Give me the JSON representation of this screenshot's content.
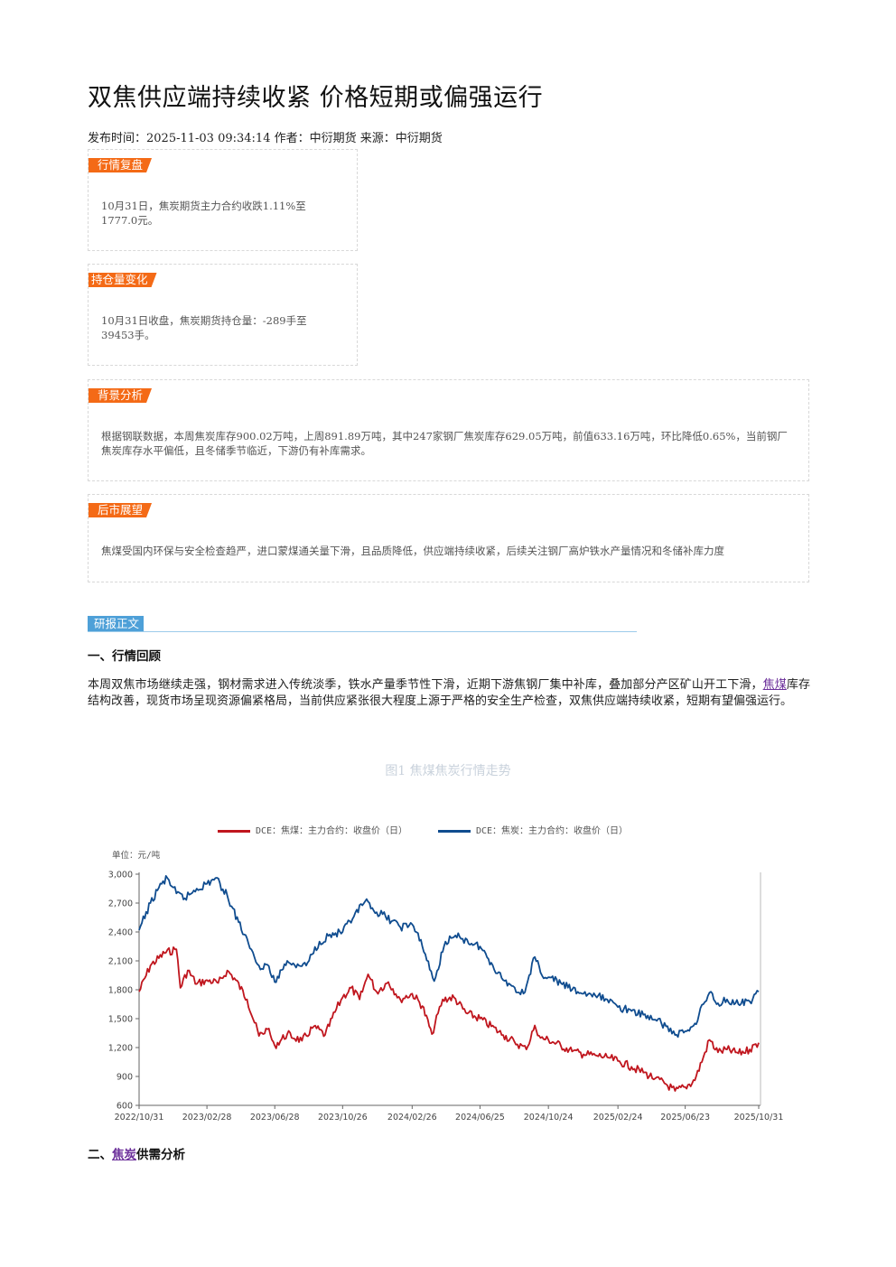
{
  "article": {
    "title": "双焦供应端持续收紧 价格短期或偏强运行",
    "meta": "发布时间：2025-11-03 09:34:14 作者：中衍期货 来源：中衍期货"
  },
  "boxes": {
    "review": {
      "tag": "行情复盘",
      "text": "10月31日，焦炭期货主力合约收跌1.11%至1777.0元。"
    },
    "position": {
      "tag": "持仓量变化",
      "text": "10月31日收盘，焦炭期货持仓量：-289手至39453手。"
    },
    "background": {
      "tag": "背景分析",
      "text": "根据钢联数据，本周焦炭库存900.02万吨，上周891.89万吨，其中247家钢厂焦炭库存629.05万吨，前值633.16万吨，环比降低0.65%，当前钢厂焦炭库存水平偏低，且冬储季节临近，下游仍有补库需求。"
    },
    "outlook": {
      "tag": "后市展望",
      "text": "焦煤受国内环保与安全检查趋严，进口蒙煤通关量下滑，且品质降低，供应端持续收紧，后续关注钢厂高炉铁水产量情况和冬储补库力度"
    }
  },
  "report": {
    "tag": "研报正文",
    "section1": {
      "title": "一、行情回顾"
    },
    "para1": {
      "before": "本周双焦市场继续走强，钢材需求进入传统淡季，铁水产量季节性下滑，近期下游焦钢厂集中补库，叠加部分产区矿山开工下滑，",
      "link": "焦煤",
      "after": "库存结构改善，现货市场呈现资源偏紧格局，当前供应紧张很大程度上源于严格的安全生产检查，双焦供应端持续收紧，短期有望偏强运行。"
    },
    "section2": {
      "prefix": "二、",
      "link": "焦炭",
      "suffix": "供需分析"
    }
  },
  "chart_data": {
    "type": "line",
    "title": "图1 焦煤焦炭行情走势",
    "unit_label": "单位：元/吨",
    "x_ticks": [
      "2022/10/31",
      "2023/02/28",
      "2023/06/28",
      "2023/10/26",
      "2024/02/26",
      "2024/06/25",
      "2024/10/24",
      "2025/02/24",
      "2025/06/23",
      "2025/10/31"
    ],
    "y_ticks": [
      "3,000",
      "2,700",
      "2,400",
      "2,100",
      "1,800",
      "1,500",
      "1,200",
      "900",
      "600"
    ],
    "ylim": [
      600,
      3000
    ],
    "series": [
      {
        "name": "DCE：焦煤：主力合约：收盘价（日）",
        "color": "#c0161e",
        "points": [
          [
            "2022/10/31",
            1780
          ],
          [
            "2022/11/20",
            2050
          ],
          [
            "2022/12/15",
            2180
          ],
          [
            "2023/01/05",
            2220
          ],
          [
            "2023/01/12",
            1820
          ],
          [
            "2023/01/25",
            2000
          ],
          [
            "2023/02/10",
            1860
          ],
          [
            "2023/02/28",
            1900
          ],
          [
            "2023/03/20",
            1870
          ],
          [
            "2023/04/05",
            2000
          ],
          [
            "2023/04/20",
            1900
          ],
          [
            "2023/05/10",
            1700
          ],
          [
            "2023/05/31",
            1320
          ],
          [
            "2023/06/15",
            1390
          ],
          [
            "2023/06/28",
            1220
          ],
          [
            "2023/07/20",
            1340
          ],
          [
            "2023/08/15",
            1270
          ],
          [
            "2023/09/05",
            1420
          ],
          [
            "2023/09/25",
            1330
          ],
          [
            "2023/10/15",
            1600
          ],
          [
            "2023/10/26",
            1720
          ],
          [
            "2023/11/10",
            1820
          ],
          [
            "2023/11/25",
            1700
          ],
          [
            "2023/12/10",
            1960
          ],
          [
            "2023/12/25",
            1780
          ],
          [
            "2024/01/15",
            1880
          ],
          [
            "2024/02/05",
            1700
          ],
          [
            "2024/02/26",
            1760
          ],
          [
            "2024/03/15",
            1630
          ],
          [
            "2024/04/01",
            1340
          ],
          [
            "2024/04/20",
            1700
          ],
          [
            "2024/05/10",
            1720
          ],
          [
            "2024/05/31",
            1560
          ],
          [
            "2024/06/25",
            1500
          ],
          [
            "2024/07/15",
            1420
          ],
          [
            "2024/08/05",
            1330
          ],
          [
            "2024/08/25",
            1260
          ],
          [
            "2024/09/15",
            1180
          ],
          [
            "2024/09/30",
            1430
          ],
          [
            "2024/10/10",
            1300
          ],
          [
            "2024/10/24",
            1280
          ],
          [
            "2024/11/15",
            1220
          ],
          [
            "2024/12/05",
            1160
          ],
          [
            "2024/12/25",
            1130
          ],
          [
            "2025/01/15",
            1120
          ],
          [
            "2025/02/05",
            1100
          ],
          [
            "2025/02/24",
            1060
          ],
          [
            "2025/03/20",
            1000
          ],
          [
            "2025/04/10",
            940
          ],
          [
            "2025/05/01",
            880
          ],
          [
            "2025/05/20",
            820
          ],
          [
            "2025/06/05",
            750
          ],
          [
            "2025/06/23",
            790
          ],
          [
            "2025/07/10",
            860
          ],
          [
            "2025/07/25",
            1100
          ],
          [
            "2025/08/05",
            1280
          ],
          [
            "2025/08/20",
            1150
          ],
          [
            "2025/09/05",
            1180
          ],
          [
            "2025/09/25",
            1140
          ],
          [
            "2025/10/15",
            1180
          ],
          [
            "2025/10/31",
            1250
          ]
        ]
      },
      {
        "name": "DCE：焦炭：主力合约：收盘价（日）",
        "color": "#0f4c8f",
        "points": [
          [
            "2022/10/31",
            2420
          ],
          [
            "2022/11/20",
            2700
          ],
          [
            "2022/12/05",
            2860
          ],
          [
            "2022/12/20",
            2960
          ],
          [
            "2023/01/05",
            2800
          ],
          [
            "2023/01/20",
            2750
          ],
          [
            "2023/02/10",
            2850
          ],
          [
            "2023/02/28",
            2900
          ],
          [
            "2023/03/15",
            2960
          ],
          [
            "2023/04/05",
            2780
          ],
          [
            "2023/04/25",
            2500
          ],
          [
            "2023/05/15",
            2230
          ],
          [
            "2023/05/31",
            2050
          ],
          [
            "2023/06/15",
            2060
          ],
          [
            "2023/06/28",
            1880
          ],
          [
            "2023/07/20",
            2100
          ],
          [
            "2023/08/10",
            2050
          ],
          [
            "2023/08/25",
            2080
          ],
          [
            "2023/09/15",
            2300
          ],
          [
            "2023/10/01",
            2360
          ],
          [
            "2023/10/26",
            2400
          ],
          [
            "2023/11/15",
            2560
          ],
          [
            "2023/12/05",
            2720
          ],
          [
            "2023/12/20",
            2620
          ],
          [
            "2024/01/10",
            2560
          ],
          [
            "2024/02/05",
            2450
          ],
          [
            "2024/02/26",
            2480
          ],
          [
            "2024/03/15",
            2250
          ],
          [
            "2024/04/05",
            1890
          ],
          [
            "2024/04/25",
            2300
          ],
          [
            "2024/05/20",
            2350
          ],
          [
            "2024/06/10",
            2280
          ],
          [
            "2024/06/25",
            2250
          ],
          [
            "2024/07/15",
            2080
          ],
          [
            "2024/08/05",
            1900
          ],
          [
            "2024/08/20",
            1840
          ],
          [
            "2024/09/10",
            1760
          ],
          [
            "2024/09/30",
            2140
          ],
          [
            "2024/10/10",
            1980
          ],
          [
            "2024/10/24",
            1930
          ],
          [
            "2024/11/15",
            1870
          ],
          [
            "2024/12/05",
            1800
          ],
          [
            "2024/12/25",
            1760
          ],
          [
            "2025/01/15",
            1740
          ],
          [
            "2025/02/05",
            1700
          ],
          [
            "2025/02/24",
            1620
          ],
          [
            "2025/03/20",
            1580
          ],
          [
            "2025/04/10",
            1540
          ],
          [
            "2025/05/01",
            1490
          ],
          [
            "2025/05/20",
            1420
          ],
          [
            "2025/06/05",
            1330
          ],
          [
            "2025/06/23",
            1370
          ],
          [
            "2025/07/10",
            1450
          ],
          [
            "2025/07/25",
            1650
          ],
          [
            "2025/08/05",
            1770
          ],
          [
            "2025/08/20",
            1660
          ],
          [
            "2025/09/05",
            1700
          ],
          [
            "2025/09/25",
            1650
          ],
          [
            "2025/10/15",
            1680
          ],
          [
            "2025/10/31",
            1780
          ]
        ]
      }
    ]
  }
}
